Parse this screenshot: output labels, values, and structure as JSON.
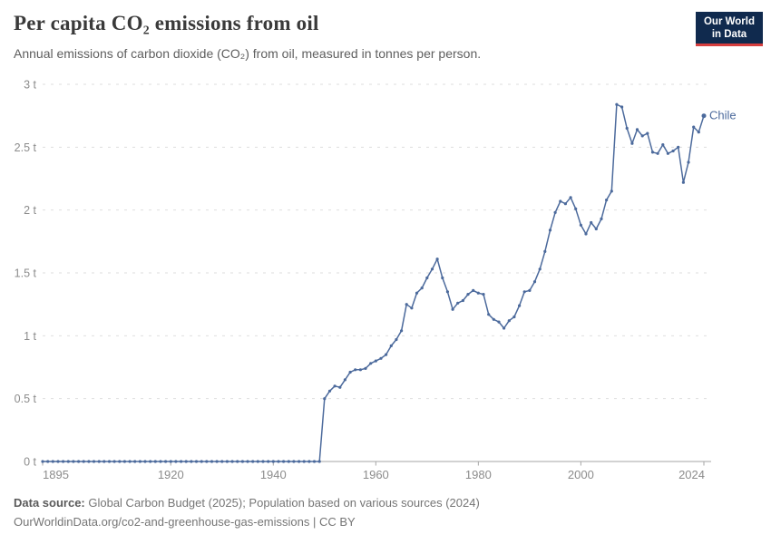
{
  "header": {
    "title": "Per capita CO₂ emissions from oil",
    "subtitle": "Annual emissions of carbon dioxide (CO₂) from oil, measured in tonnes per person.",
    "logo": {
      "line1": "Our World",
      "line2": "in Data",
      "bg_color": "#102a4e",
      "accent_color": "#d63e3e"
    }
  },
  "footer": {
    "source_label": "Data source:",
    "source_text": " Global Carbon Budget (2025); Population based on various sources (2024)",
    "link_text": "OurWorldinData.org/co2-and-greenhouse-gas-emissions | CC BY"
  },
  "chart_data": {
    "type": "line",
    "title": "Per capita CO₂ emissions from oil",
    "subtitle": "Annual emissions of carbon dioxide (CO₂) from oil, measured in tonnes per person.",
    "unit": "tonnes per person",
    "entity_label": "Chile",
    "xlim": [
      1895,
      2024
    ],
    "ylim": [
      0,
      3
    ],
    "xticks": [
      1895,
      1920,
      1940,
      1960,
      1980,
      2000,
      2024
    ],
    "yticks": [
      {
        "value": 0,
        "label": "0 t"
      },
      {
        "value": 0.5,
        "label": "0.5 t"
      },
      {
        "value": 1,
        "label": "1 t"
      },
      {
        "value": 1.5,
        "label": "1.5 t"
      },
      {
        "value": 2,
        "label": "2 t"
      },
      {
        "value": 2.5,
        "label": "2.5 t"
      },
      {
        "value": 3,
        "label": "3 t"
      }
    ],
    "grid": "dashed-horizontal",
    "legend_position": "end-of-line",
    "x": [
      1895,
      1896,
      1897,
      1898,
      1899,
      1900,
      1901,
      1902,
      1903,
      1904,
      1905,
      1906,
      1907,
      1908,
      1909,
      1910,
      1911,
      1912,
      1913,
      1914,
      1915,
      1916,
      1917,
      1918,
      1919,
      1920,
      1921,
      1922,
      1923,
      1924,
      1925,
      1926,
      1927,
      1928,
      1929,
      1930,
      1931,
      1932,
      1933,
      1934,
      1935,
      1936,
      1937,
      1938,
      1939,
      1940,
      1941,
      1942,
      1943,
      1944,
      1945,
      1946,
      1947,
      1948,
      1949,
      1950,
      1951,
      1952,
      1953,
      1954,
      1955,
      1956,
      1957,
      1958,
      1959,
      1960,
      1961,
      1962,
      1963,
      1964,
      1965,
      1966,
      1967,
      1968,
      1969,
      1970,
      1971,
      1972,
      1973,
      1974,
      1975,
      1976,
      1977,
      1978,
      1979,
      1980,
      1981,
      1982,
      1983,
      1984,
      1985,
      1986,
      1987,
      1988,
      1989,
      1990,
      1991,
      1992,
      1993,
      1994,
      1995,
      1996,
      1997,
      1998,
      1999,
      2000,
      2001,
      2002,
      2003,
      2004,
      2005,
      2006,
      2007,
      2008,
      2009,
      2010,
      2011,
      2012,
      2013,
      2014,
      2015,
      2016,
      2017,
      2018,
      2019,
      2020,
      2021,
      2022,
      2023,
      2024
    ],
    "series": [
      {
        "name": "Chile",
        "color": "#4c6a9c",
        "values": [
          0,
          0,
          0,
          0,
          0,
          0,
          0,
          0,
          0,
          0,
          0,
          0,
          0,
          0,
          0,
          0,
          0,
          0,
          0,
          0,
          0,
          0,
          0,
          0,
          0,
          0,
          0,
          0,
          0,
          0,
          0,
          0,
          0,
          0,
          0,
          0,
          0,
          0,
          0,
          0,
          0,
          0,
          0,
          0,
          0,
          0,
          0,
          0,
          0,
          0,
          0,
          0,
          0,
          0,
          0,
          0.5,
          0.56,
          0.6,
          0.59,
          0.65,
          0.71,
          0.73,
          0.73,
          0.74,
          0.78,
          0.8,
          0.82,
          0.85,
          0.92,
          0.97,
          1.04,
          1.25,
          1.22,
          1.34,
          1.38,
          1.46,
          1.53,
          1.61,
          1.46,
          1.35,
          1.21,
          1.26,
          1.28,
          1.33,
          1.36,
          1.34,
          1.33,
          1.17,
          1.13,
          1.11,
          1.06,
          1.12,
          1.15,
          1.24,
          1.35,
          1.36,
          1.43,
          1.53,
          1.67,
          1.84,
          1.98,
          2.07,
          2.05,
          2.1,
          2.01,
          1.88,
          1.81,
          1.9,
          1.85,
          1.93,
          2.08,
          2.15,
          2.84,
          2.82,
          2.65,
          2.53,
          2.64,
          2.59,
          2.61,
          2.46,
          2.45,
          2.52,
          2.45,
          2.47,
          2.5,
          2.22,
          2.38,
          2.66,
          2.62,
          2.75
        ]
      }
    ],
    "colors": {
      "line": "#4c6a9c",
      "grid": "#dedede",
      "axis": "#a6a6a6",
      "tick_label": "#8c8c8c"
    }
  }
}
